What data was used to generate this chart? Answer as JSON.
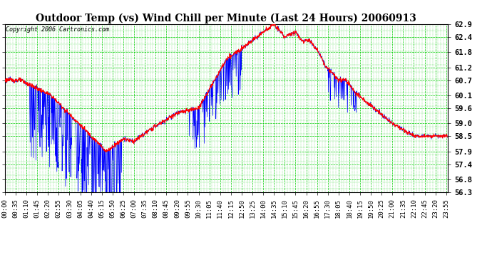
{
  "title": "Outdoor Temp (vs) Wind Chill per Minute (Last 24 Hours) 20060913",
  "copyright_text": "Copyright 2006 Cartronics.com",
  "ylim_low": 56.3,
  "ylim_high": 62.9,
  "yticks": [
    56.3,
    56.8,
    57.4,
    57.9,
    58.5,
    59.0,
    59.6,
    60.1,
    60.7,
    61.2,
    61.8,
    62.4,
    62.9
  ],
  "background_color": "#ffffff",
  "grid_color": "#00cc00",
  "red_line_color": "#ff0000",
  "blue_line_color": "#0000ff",
  "title_fontsize": 10,
  "tick_label_fontsize": 6.5,
  "copyright_fontsize": 6
}
